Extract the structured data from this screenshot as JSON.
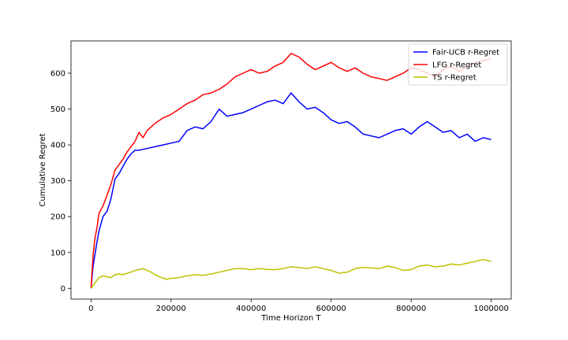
{
  "chart_data": {
    "type": "line",
    "title": "",
    "xlabel": "Time Horizon T",
    "ylabel": "Cumulative Regret",
    "xlim": [
      -50000,
      1050000
    ],
    "ylim": [
      -30,
      690
    ],
    "xticks": [
      0,
      200000,
      400000,
      600000,
      800000,
      1000000
    ],
    "xtick_labels": [
      "0",
      "200000",
      "400000",
      "600000",
      "800000",
      "1000000"
    ],
    "yticks": [
      0,
      100,
      200,
      300,
      400,
      500,
      600
    ],
    "ytick_labels": [
      "0",
      "100",
      "200",
      "300",
      "400",
      "500",
      "600"
    ],
    "grid": false,
    "legend_position": "top-right",
    "series": [
      {
        "name": "Fair-UCB r-Regret",
        "color": "#0000ff",
        "x": [
          0,
          5000,
          10000,
          15000,
          20000,
          30000,
          40000,
          50000,
          60000,
          70000,
          80000,
          90000,
          100000,
          110000,
          120000,
          140000,
          160000,
          180000,
          200000,
          220000,
          240000,
          260000,
          280000,
          300000,
          320000,
          340000,
          360000,
          380000,
          400000,
          420000,
          440000,
          460000,
          480000,
          500000,
          520000,
          540000,
          560000,
          580000,
          600000,
          620000,
          640000,
          660000,
          680000,
          700000,
          720000,
          740000,
          760000,
          780000,
          800000,
          820000,
          840000,
          860000,
          880000,
          900000,
          920000,
          940000,
          960000,
          980000,
          1000000
        ],
        "values": [
          0,
          60,
          95,
          130,
          160,
          200,
          215,
          250,
          305,
          320,
          340,
          360,
          375,
          385,
          385,
          390,
          395,
          400,
          405,
          410,
          440,
          450,
          445,
          465,
          500,
          480,
          485,
          490,
          500,
          510,
          520,
          525,
          515,
          545,
          520,
          500,
          505,
          490,
          470,
          460,
          465,
          450,
          430,
          425,
          420,
          430,
          440,
          445,
          430,
          450,
          465,
          450,
          435,
          440,
          420,
          430,
          410,
          420,
          415
        ]
      },
      {
        "name": "LFG r-Regret",
        "color": "#ff0000",
        "x": [
          0,
          5000,
          10000,
          15000,
          20000,
          30000,
          40000,
          50000,
          60000,
          70000,
          80000,
          90000,
          100000,
          110000,
          120000,
          130000,
          140000,
          160000,
          180000,
          200000,
          220000,
          240000,
          260000,
          280000,
          300000,
          320000,
          340000,
          360000,
          380000,
          400000,
          420000,
          440000,
          460000,
          480000,
          500000,
          520000,
          540000,
          560000,
          580000,
          600000,
          620000,
          640000,
          660000,
          680000,
          700000,
          720000,
          740000,
          760000,
          780000,
          800000,
          820000,
          840000,
          860000,
          880000,
          900000,
          920000,
          940000,
          960000,
          980000,
          1000000
        ],
        "values": [
          0,
          90,
          140,
          170,
          210,
          230,
          260,
          290,
          330,
          345,
          360,
          380,
          395,
          410,
          435,
          420,
          440,
          460,
          475,
          485,
          500,
          515,
          525,
          540,
          545,
          555,
          570,
          590,
          600,
          610,
          600,
          605,
          620,
          630,
          655,
          645,
          625,
          610,
          620,
          630,
          615,
          605,
          615,
          600,
          590,
          585,
          580,
          590,
          600,
          615,
          610,
          600,
          590,
          610,
          620,
          605,
          620,
          630,
          635,
          640
        ]
      },
      {
        "name": "TS r-Regret",
        "color": "#bfbf00",
        "x": [
          0,
          10000,
          20000,
          30000,
          40000,
          50000,
          60000,
          70000,
          80000,
          90000,
          100000,
          110000,
          120000,
          130000,
          140000,
          150000,
          160000,
          170000,
          180000,
          190000,
          200000,
          220000,
          240000,
          260000,
          280000,
          300000,
          320000,
          340000,
          360000,
          380000,
          400000,
          420000,
          440000,
          460000,
          480000,
          500000,
          520000,
          540000,
          560000,
          580000,
          600000,
          620000,
          640000,
          660000,
          680000,
          700000,
          720000,
          740000,
          760000,
          780000,
          800000,
          820000,
          840000,
          860000,
          880000,
          900000,
          920000,
          940000,
          960000,
          980000,
          1000000
        ],
        "values": [
          0,
          15,
          30,
          35,
          32,
          30,
          38,
          40,
          38,
          42,
          45,
          50,
          52,
          55,
          50,
          45,
          38,
          33,
          28,
          25,
          28,
          30,
          35,
          38,
          36,
          40,
          45,
          50,
          55,
          55,
          52,
          55,
          53,
          52,
          55,
          60,
          58,
          55,
          60,
          55,
          50,
          42,
          45,
          55,
          58,
          57,
          55,
          62,
          58,
          50,
          52,
          62,
          65,
          60,
          62,
          68,
          65,
          70,
          75,
          80,
          75
        ]
      }
    ]
  }
}
